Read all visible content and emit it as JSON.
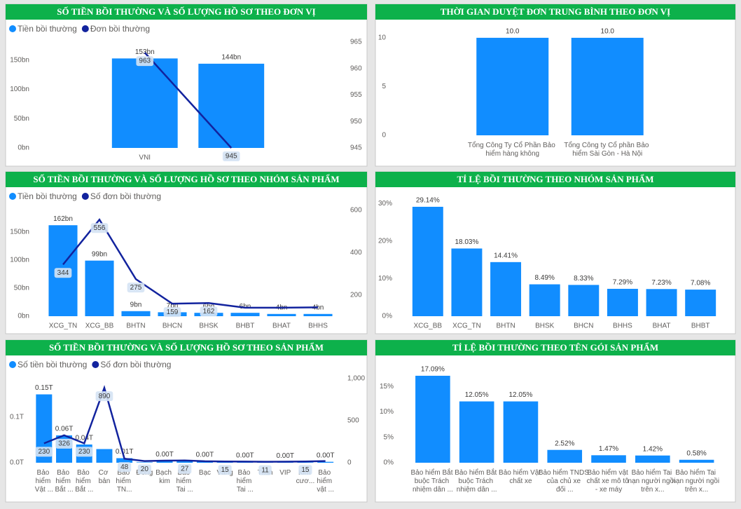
{
  "chart_data": [
    {
      "type": "combo",
      "title": "SỐ TIỀN BỒI THƯỜNG VÀ SỐ LƯỢNG HỒ SƠ THEO ĐƠN VỊ",
      "categories": [
        "VNI",
        "BSH"
      ],
      "series": [
        {
          "name": "Tiền bồi thường",
          "type": "bar",
          "color": "#118dff",
          "values": [
            153,
            144
          ],
          "value_labels": [
            "153bn",
            "144bn"
          ]
        },
        {
          "name": "Đơn bồi thường",
          "type": "line",
          "axis": "y2",
          "color": "#12239e",
          "values": [
            963,
            945
          ]
        }
      ],
      "ylim": [
        0,
        181
      ],
      "yticks": [
        {
          "value": 0,
          "label": "0bn"
        },
        {
          "value": 50,
          "label": "50bn"
        },
        {
          "value": 100,
          "label": "100bn"
        },
        {
          "value": 150,
          "label": "150bn"
        }
      ],
      "y2lim": [
        945,
        965
      ],
      "y2ticks": [
        945,
        950,
        955,
        960,
        965
      ]
    },
    {
      "type": "bar",
      "title": "THỜI GIAN DUYỆT ĐƠN TRUNG BÌNH THEO ĐƠN VỊ",
      "categories": [
        "Tổng Công Ty Cổ Phần Bảo hiểm hàng không",
        "Tổng Công ty Cổ phần Bảo hiểm Sài Gòn - Hà Nội"
      ],
      "values": [
        10,
        10
      ],
      "value_labels": [
        "10.0",
        "10.0"
      ],
      "color": "#118dff",
      "ylim": [
        0,
        11
      ],
      "yticks": [
        0,
        5,
        10
      ]
    },
    {
      "type": "combo",
      "title": "SỐ TIỀN BỒI THƯỜNG VÀ SỐ LƯỢNG HỒ SƠ THEO NHÓM SẢN PHẨM",
      "categories": [
        "XCG_TN",
        "XCG_BB",
        "BHTN",
        "BHCN",
        "BHSK",
        "BHBT",
        "BHAT",
        "BHHS"
      ],
      "series": [
        {
          "name": "Tiền bồi thường",
          "type": "bar",
          "color": "#118dff",
          "values": [
            162,
            99,
            9,
            7,
            6,
            6,
            4,
            4
          ],
          "value_labels": [
            "162bn",
            "99bn",
            "9bn",
            "7bn",
            "6bn",
            "6bn",
            "4bn",
            "4bn"
          ]
        },
        {
          "name": "Số đơn bồi thường",
          "type": "line",
          "axis": "y2",
          "color": "#12239e",
          "values": [
            344,
            556,
            275,
            159,
            162,
            140,
            140,
            142
          ],
          "value_labels": [
            "344",
            "556",
            "275",
            "159",
            "162",
            null,
            null,
            null
          ]
        }
      ],
      "ylim": [
        0,
        201
      ],
      "yticks": [
        {
          "value": 0,
          "label": "0bn"
        },
        {
          "value": 50,
          "label": "50bn"
        },
        {
          "value": 100,
          "label": "100bn"
        },
        {
          "value": 150,
          "label": "150bn"
        }
      ],
      "y2lim": [
        100,
        633
      ],
      "y2ticks": [
        200,
        400,
        600
      ]
    },
    {
      "type": "bar",
      "title": "TỈ LỆ BỒI THƯỜNG THEO NHÓM SẢN PHẨM",
      "categories": [
        "XCG_BB",
        "XCG_TN",
        "BHTN",
        "BHSK",
        "BHCN",
        "BHHS",
        "BHAT",
        "BHBT"
      ],
      "values": [
        29.14,
        18.03,
        14.41,
        8.49,
        8.33,
        7.29,
        7.23,
        7.08
      ],
      "value_labels": [
        "29.14%",
        "18.03%",
        "14.41%",
        "8.49%",
        "8.33%",
        "7.29%",
        "7.23%",
        "7.08%"
      ],
      "color": "#118dff",
      "ylim": [
        0,
        31
      ],
      "yticks": [
        {
          "value": 0,
          "label": "0%"
        },
        {
          "value": 10,
          "label": "10%"
        },
        {
          "value": 20,
          "label": "20%"
        },
        {
          "value": 30,
          "label": "30%"
        }
      ]
    },
    {
      "type": "combo",
      "title": "SỐ TIỀN BỒI THƯỜNG VÀ SỐ LƯỢNG HỒ SƠ THEO SẢN PHẨM",
      "categories": [
        "Bảo hiểm Vật ...",
        "Bảo hiểm Bắt ...",
        "Bảo hiểm Bắt ...",
        "Cơ bản",
        "Bảo hiểm TN...",
        "Đồng",
        "Bạch kim",
        "Bảo hiểm Tai ...",
        "Bạc",
        "Vàng",
        "Bảo hiểm Tai ...",
        "Titan",
        "VIP",
        "Kim cươ...",
        "Bảo hiểm vật ..."
      ],
      "series": [
        {
          "name": "Số tiền bồi thường",
          "type": "bar",
          "color": "#118dff",
          "values": [
            0.15,
            0.06,
            0.04,
            0.03,
            0.01,
            0.001,
            0.004,
            0.003,
            0.003,
            0.002,
            0.002,
            0.001,
            0.001,
            0.001,
            0.002
          ],
          "value_labels": [
            "0.15T",
            "0.06T",
            "0.04T",
            null,
            "0.01T",
            null,
            "0.00T",
            null,
            "0.00T",
            null,
            "0.00T",
            null,
            "0.00T",
            null,
            "0.00T"
          ]
        },
        {
          "name": "Số đơn bồi thường",
          "type": "line",
          "axis": "y2",
          "color": "#12239e",
          "values": [
            230,
            326,
            230,
            890,
            48,
            20,
            25,
            27,
            18,
            15,
            14,
            11,
            12,
            15,
            20
          ],
          "value_labels": [
            "230",
            "326",
            "230",
            "890",
            "48",
            "20",
            null,
            "27",
            null,
            "15",
            null,
            "11",
            null,
            "15",
            null
          ]
        }
      ],
      "ylim": [
        0,
        0.2
      ],
      "yticks": [
        {
          "value": 0,
          "label": "0.0T"
        },
        {
          "value": 0.1,
          "label": "0.1T"
        }
      ],
      "y2lim": [
        0,
        1083
      ],
      "y2ticks": [
        0,
        500,
        {
          "value": 1000,
          "label": "1,000"
        }
      ]
    },
    {
      "type": "bar",
      "title": "TỈ LỆ BỒI THƯỜNG THEO TÊN GÓI SẢN PHẨM",
      "categories": [
        "Bảo hiểm Bắt buộc Trách nhiệm dân ...",
        "Bảo hiểm Bắt buộc Trách nhiệm dân ...",
        "Bảo hiểm Vật chất xe",
        "Bảo hiểm TNDS của chủ xe đối ...",
        "Bảo hiểm vật chất xe mô tô - xe máy",
        "Bảo hiểm Tai nạn người ngồi trên x...",
        "Bảo hiểm Tai nạn người ngồi trên x..."
      ],
      "values": [
        17.09,
        12.05,
        12.05,
        2.52,
        1.47,
        1.42,
        0.58
      ],
      "value_labels": [
        "17.09%",
        "12.05%",
        "12.05%",
        "2.52%",
        "1.47%",
        "1.42%",
        "0.58%"
      ],
      "color": "#118dff",
      "ylim": [
        0,
        18.6
      ],
      "yticks": [
        {
          "value": 0,
          "label": "0%"
        },
        {
          "value": 5,
          "label": "5%"
        },
        {
          "value": 10,
          "label": "10%"
        },
        {
          "value": 15,
          "label": "15%"
        }
      ]
    }
  ]
}
